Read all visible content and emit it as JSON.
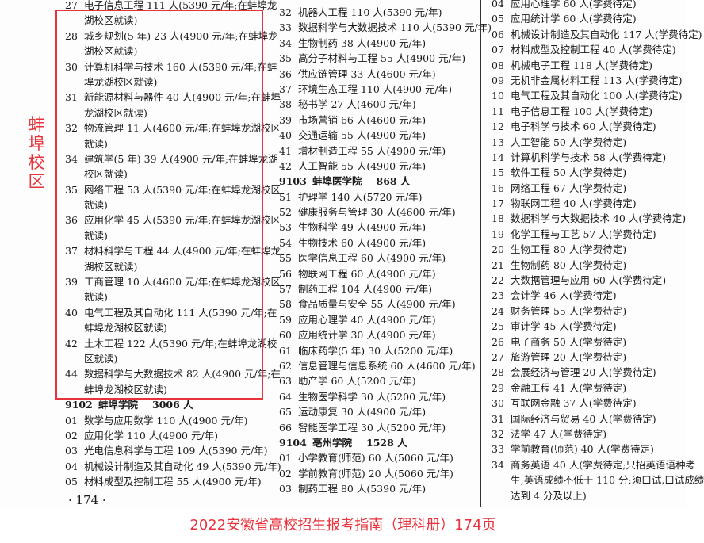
{
  "campus_label": "蚌埠校区",
  "page_number": "· 174 ·",
  "caption": "2022安徽省高校招生报考指南（理科册）174页",
  "accent_color": "#e8323c",
  "columns": [
    [
      {
        "num": "27",
        "text": "电子信息工程 111 人(5390 元/年;在蚌埠龙",
        "cont": "湖校区就读)"
      },
      {
        "num": "28",
        "text": "城乡规划(5 年) 23 人(4900 元/年;在蚌埠龙",
        "cont": "湖校区就读)"
      },
      {
        "num": "30",
        "text": "计算机科学与技术 160 人(5390 元/年;在蚌",
        "cont": "埠龙湖校区就读)"
      },
      {
        "num": "31",
        "text": "新能源材料与器件 40 人(4900 元/年;在蚌埠",
        "cont": "龙湖校区就读)"
      },
      {
        "num": "32",
        "text": "物流管理 11 人(4600 元/年;在蚌埠龙湖校区",
        "cont": "就读)"
      },
      {
        "num": "34",
        "text": "建筑学(5 年) 39 人(4900 元/年;在蚌埠龙湖",
        "cont": "校区就读)"
      },
      {
        "num": "35",
        "text": "网络工程 53 人(5390 元/年;在蚌埠龙湖校区",
        "cont": "就读)"
      },
      {
        "num": "36",
        "text": "应用化学 45 人(5390 元/年;在蚌埠龙湖校区",
        "cont": "就读)"
      },
      {
        "num": "37",
        "text": "材料科学与工程 44 人(4900 元/年;在蚌埠龙",
        "cont": "湖校区就读)"
      },
      {
        "num": "39",
        "text": "工商管理 10 人(4600 元/年;在蚌埠龙湖校区",
        "cont": "就读)"
      },
      {
        "num": "40",
        "text": "电气工程及其自动化 111 人(5390 元/年;在",
        "cont": "蚌埠龙湖校区就读)"
      },
      {
        "num": "42",
        "text": "土木工程 122 人(5390 元/年;在蚌埠龙湖校",
        "cont": "区就读)"
      },
      {
        "num": "44",
        "text": "数据科学与大数据技术 82 人(4900 元/年;在",
        "cont": "蚌埠龙湖校区就读)"
      },
      {
        "header": true,
        "code": "9102",
        "name": "蚌埠学院",
        "count": "3006 人"
      },
      {
        "num": "01",
        "text": "数学与应用数学 110 人(4900 元/年)"
      },
      {
        "num": "02",
        "text": "应用化学 110 人(4900 元/年)"
      },
      {
        "num": "03",
        "text": "光电信息科学与工程 109 人(5390 元/年)"
      },
      {
        "num": "04",
        "text": "机械设计制造及其自动化 49 人(5390 元/年)"
      },
      {
        "num": "05",
        "text": "材料成型及控制工程 55 人(4900 元/年)"
      }
    ],
    [
      {
        "num": "32",
        "text": "机器人工程 110 人(5390 元/年)"
      },
      {
        "num": "33",
        "text": "数据科学与大数据技术 110 人(5390 元/年)"
      },
      {
        "num": "34",
        "text": "生物制药 38 人(4900 元/年)"
      },
      {
        "num": "35",
        "text": "高分子材料与工程 55 人(4900 元/年)"
      },
      {
        "num": "36",
        "text": "供应链管理 33 人(4600 元/年)"
      },
      {
        "num": "37",
        "text": "环境生态工程 110 人(4900 元/年)"
      },
      {
        "num": "38",
        "text": "秘书学 27 人(4600 元/年)"
      },
      {
        "num": "39",
        "text": "市场营销 66 人(4600 元/年)"
      },
      {
        "num": "40",
        "text": "交通运输 55 人(4900 元/年)"
      },
      {
        "num": "41",
        "text": "增材制造工程 55 人(4900 元/年)"
      },
      {
        "num": "42",
        "text": "人工智能 55 人(4900 元/年)"
      },
      {
        "header": true,
        "code": "9103",
        "name": "蚌埠医学院",
        "count": "868 人"
      },
      {
        "num": "51",
        "text": "护理学 140 人(5720 元/年)"
      },
      {
        "num": "52",
        "text": "健康服务与管理 30 人(4600 元/年)"
      },
      {
        "num": "53",
        "text": "生物科学 49 人(4900 元/年)"
      },
      {
        "num": "54",
        "text": "生物技术 60 人(4900 元/年)"
      },
      {
        "num": "55",
        "text": "医学信息工程 60 人(4900 元/年)"
      },
      {
        "num": "56",
        "text": "物联网工程 60 人(4900 元/年)"
      },
      {
        "num": "57",
        "text": "制药工程 104 人(4900 元/年)"
      },
      {
        "num": "58",
        "text": "食品质量与安全 55 人(4900 元/年)"
      },
      {
        "num": "59",
        "text": "应用心理学 40 人(4900 元/年)"
      },
      {
        "num": "60",
        "text": "应用统计学 30 人(4900 元/年)"
      },
      {
        "num": "61",
        "text": "临床药学(5 年) 30 人(5200 元/年)"
      },
      {
        "num": "62",
        "text": "信息管理与信息系统 60 人(4600 元/年)"
      },
      {
        "num": "63",
        "text": "助产学 60 人(5200 元/年)"
      },
      {
        "num": "64",
        "text": "生物医学科学 30 人(5200 元/年)"
      },
      {
        "num": "65",
        "text": "运动康复 30 人(4900 元/年)"
      },
      {
        "num": "66",
        "text": "智能医学工程 30 人(5200 元/年)"
      },
      {
        "header": true,
        "code": "9104",
        "name": "亳州学院",
        "count": "1528 人"
      },
      {
        "num": "01",
        "text": "小学教育(师范) 60 人(5060 元/年)"
      },
      {
        "num": "02",
        "text": "学前教育(师范) 20 人(5060 元/年)"
      },
      {
        "num": "03",
        "text": "制药工程 80 人(5390 元/年)"
      }
    ],
    [
      {
        "num": "04",
        "text": "应用心理学 60 人(学费待定)"
      },
      {
        "num": "05",
        "text": "应用统计学 60 人(学费待定)"
      },
      {
        "num": "06",
        "text": "机械设计制造及其自动化 117 人(学费待定)"
      },
      {
        "num": "07",
        "text": "材料成型及控制工程 40 人(学费待定)"
      },
      {
        "num": "08",
        "text": "机械电子工程 118 人(学费待定)"
      },
      {
        "num": "09",
        "text": "无机非金属材料工程 113 人(学费待定)"
      },
      {
        "num": "10",
        "text": "电气工程及其自动化 100 人(学费待定)"
      },
      {
        "num": "11",
        "text": "电子信息工程 100 人(学费待定)"
      },
      {
        "num": "12",
        "text": "电子科学与技术 60 人(学费待定)"
      },
      {
        "num": "13",
        "text": "人工智能 50 人(学费待定)"
      },
      {
        "num": "14",
        "text": "计算机科学与技术 58 人(学费待定)"
      },
      {
        "num": "15",
        "text": "软件工程 50 人(学费待定)"
      },
      {
        "num": "16",
        "text": "网络工程 67 人(学费待定)"
      },
      {
        "num": "17",
        "text": "物联网工程 40 人(学费待定)"
      },
      {
        "num": "18",
        "text": "数据科学与大数据技术 40 人(学费待定)"
      },
      {
        "num": "19",
        "text": "化学工程与工艺 57 人(学费待定)"
      },
      {
        "num": "20",
        "text": "生物工程 80 人(学费待定)"
      },
      {
        "num": "21",
        "text": "生物制药 80 人(学费待定)"
      },
      {
        "num": "22",
        "text": "大数据管理与应用 60 人(学费待定)"
      },
      {
        "num": "23",
        "text": "会计学 46 人(学费待定)"
      },
      {
        "num": "24",
        "text": "财务管理 55 人(学费待定)"
      },
      {
        "num": "25",
        "text": "审计学 45 人(学费待定)"
      },
      {
        "num": "26",
        "text": "电子商务 50 人(学费待定)"
      },
      {
        "num": "27",
        "text": "旅游管理 20 人(学费待定)"
      },
      {
        "num": "28",
        "text": "会展经济与管理 20 人(学费待定)"
      },
      {
        "num": "29",
        "text": "金融工程 41 人(学费待定)"
      },
      {
        "num": "30",
        "text": "互联网金融 37 人(学费待定)"
      },
      {
        "num": "31",
        "text": "国际经济与贸易 40 人(学费待定)"
      },
      {
        "num": "32",
        "text": "法学 47 人(学费待定)"
      },
      {
        "num": "33",
        "text": "学前教育(师范) 40 人(学费待定)"
      },
      {
        "num": "34",
        "text": "商务英语 40 人(学费待定;只招英语语种考",
        "cont": "生;英语成绩不低于 110 分;须口试,口试成绩",
        "cont2": "达到 4 分及以上)"
      }
    ]
  ]
}
